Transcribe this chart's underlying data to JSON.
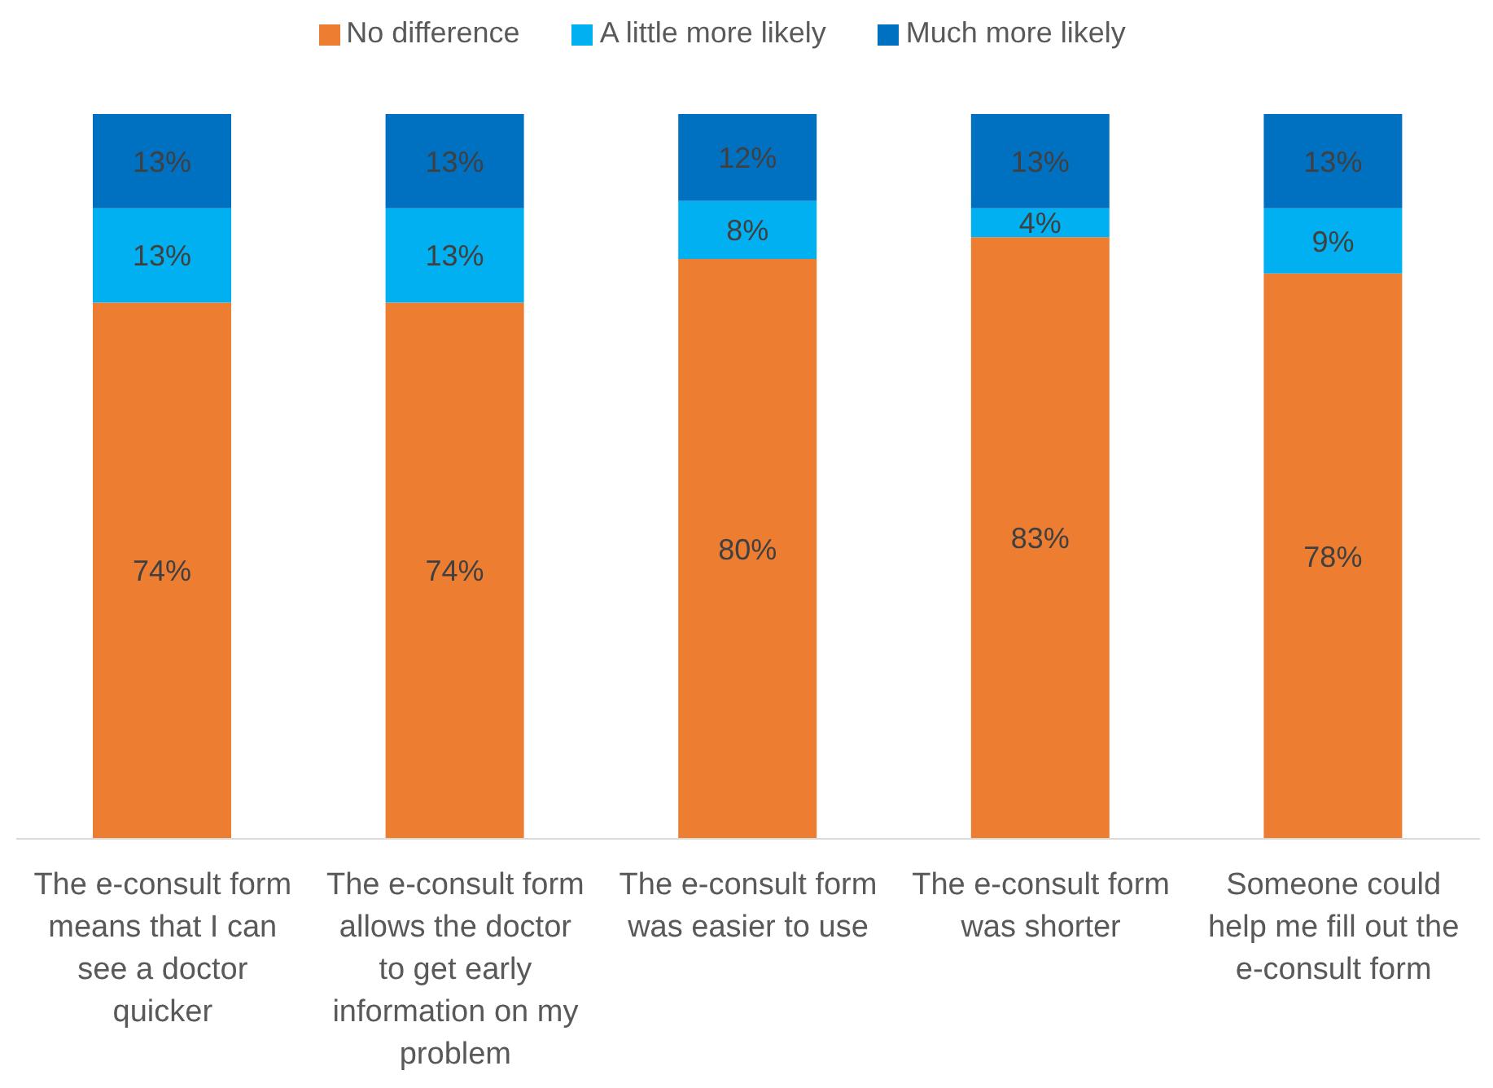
{
  "chart_data": {
    "type": "bar",
    "stacked": true,
    "legend": "top",
    "tick_labels": "x",
    "categories": [
      "The e-consult form means that I can see a doctor quicker",
      "The e-consult form allows the doctor to get early information on my problem",
      "The e-consult form was easier to use",
      "The e-consult form was shorter",
      "Someone could help me fill out the e-consult form"
    ],
    "series": [
      {
        "name": "No difference",
        "color": "#ed7d31",
        "values": [
          74,
          74,
          80,
          83,
          78
        ],
        "value_labels": [
          "74%",
          "74%",
          "80%",
          "83%",
          "78%"
        ]
      },
      {
        "name": "A little more likely",
        "color": "#00b0f0",
        "values": [
          13,
          13,
          8,
          4,
          9
        ],
        "value_labels": [
          "13%",
          "13%",
          "8%",
          "4%",
          "9%"
        ]
      },
      {
        "name": "Much more likely",
        "color": "#0070c0",
        "values": [
          13,
          13,
          12,
          13,
          13
        ],
        "value_labels": [
          "13%",
          "13%",
          "12%",
          "13%",
          "13%"
        ]
      }
    ]
  }
}
